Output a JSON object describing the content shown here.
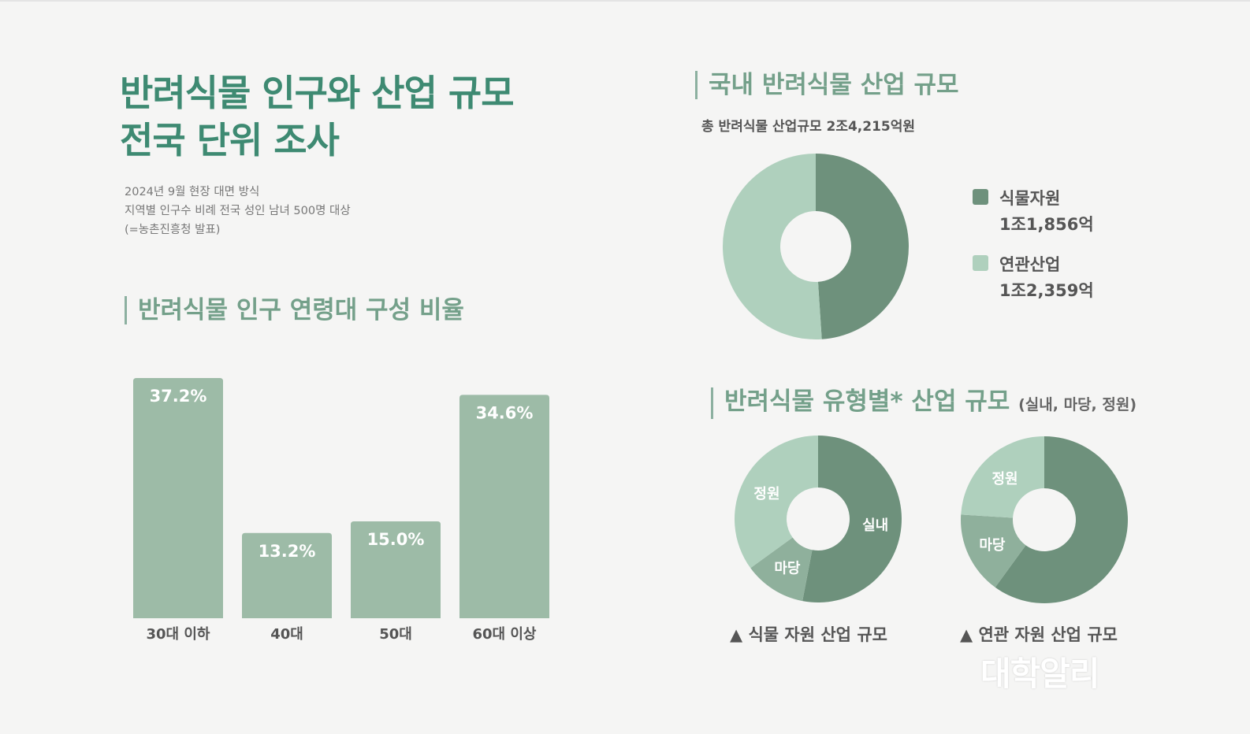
{
  "header": {
    "title_line1": "반려식물 인구와 산업 규모",
    "title_line2": "전국 단위 조사",
    "source_lines": [
      "2024년 9월 현장 대면 방식",
      "지역별 인구수 비례 전국 성인 남녀 500명 대상",
      "(=농촌진흥청 발표)"
    ]
  },
  "sections": {
    "age_title": "반려식물 인구 연령대 구성 비율",
    "industry_title": "국내 반려식물 산업 규모",
    "industry_subtitle": "총 반려식물 산업규모 2조4,215억원",
    "type_title": "반려식물 유형별* 산업 규모",
    "type_title_note": "(실내, 마당, 정원)"
  },
  "legend": [
    {
      "name": "식물자원",
      "value": "1조1,856억",
      "color": "#6e917c"
    },
    {
      "name": "연관산업",
      "value": "1조2,359억",
      "color": "#afd0bd"
    }
  ],
  "captions": {
    "left": "▲ 식물 자원 산업 규모",
    "right": "▲ 연관 자원 산업 규모"
  },
  "watermark": "대학알리",
  "colors": {
    "bar": "#9dbba7",
    "dark": "#6e917c",
    "mid": "#8fb09c",
    "light": "#afd0bd"
  },
  "chart_data": [
    {
      "type": "bar",
      "title": "반려식물 인구 연령대 구성 비율",
      "categories": [
        "30대 이하",
        "40대",
        "50대",
        "60대 이상"
      ],
      "values": [
        37.2,
        13.2,
        15.0,
        34.6
      ],
      "labels": [
        "37.2%",
        "13.2%",
        "15.0%",
        "34.6%"
      ]
    },
    {
      "type": "pie",
      "title": "국내 반려식물 산업 규모",
      "subtitle": "총 반려식물 산업규모 2조4,215억원",
      "slices": [
        {
          "name": "식물자원",
          "value": 11856
        },
        {
          "name": "연관산업",
          "value": 12359
        }
      ]
    },
    {
      "type": "pie",
      "title": "식물 자원 산업 규모",
      "slices": [
        {
          "name": "실내",
          "value": 53
        },
        {
          "name": "마당",
          "value": 12
        },
        {
          "name": "정원",
          "value": 35
        }
      ]
    },
    {
      "type": "pie",
      "title": "연관 자원 산업 규모",
      "slices": [
        {
          "name": "",
          "value": 60
        },
        {
          "name": "마당",
          "value": 16
        },
        {
          "name": "정원",
          "value": 24
        }
      ]
    }
  ]
}
